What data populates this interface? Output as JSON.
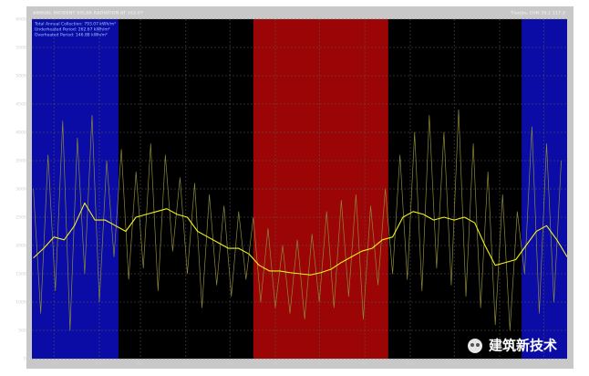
{
  "chart_data": {
    "type": "line",
    "title": "ANNUAL INCIDENT SOLAR RADIATION AT 162.07",
    "subtitle": "Tianjin, CHN 39.1 117.2",
    "annotations": [
      "Total Annual Collection: 793.07 kWh/m²",
      "Underheated Period: 262.67 kWh/m²",
      "Overheated Period: 146.88 kWh/m²"
    ],
    "xlim": [
      0,
      365
    ],
    "ylim": [
      0,
      6000
    ],
    "xticks": [
      {
        "value": 15,
        "label": "Jan"
      },
      {
        "value": 46,
        "label": "Feb"
      },
      {
        "value": 74,
        "label": "Mar"
      },
      {
        "value": 105,
        "label": "Apr"
      },
      {
        "value": 135,
        "label": "May"
      },
      {
        "value": 166,
        "label": "Jun"
      },
      {
        "value": 196,
        "label": "Jul"
      },
      {
        "value": 227,
        "label": "Aug"
      },
      {
        "value": 258,
        "label": "Sep"
      },
      {
        "value": 288,
        "label": "Oct"
      },
      {
        "value": 319,
        "label": "Nov"
      },
      {
        "value": 349,
        "label": "Dec"
      }
    ],
    "yticks": [
      {
        "value": 0,
        "label": "0.0"
      },
      {
        "value": 500,
        "label": "500.0"
      },
      {
        "value": 1000,
        "label": "1000.0"
      },
      {
        "value": 1500,
        "label": "1500.0"
      },
      {
        "value": 2000,
        "label": "2000.0"
      },
      {
        "value": 2500,
        "label": "2500.0"
      },
      {
        "value": 3000,
        "label": "3000.0"
      },
      {
        "value": 3500,
        "label": "3500.0"
      },
      {
        "value": 4000,
        "label": "4000.0"
      },
      {
        "value": 4500,
        "label": "4500.0"
      },
      {
        "value": 5000,
        "label": "5000.0"
      },
      {
        "value": 5500,
        "label": "5500.0"
      },
      {
        "value": 6000,
        "label": "6000.0"
      }
    ],
    "grid": true,
    "periods": [
      {
        "start": 0,
        "end": 59,
        "color": "#0b0ba6"
      },
      {
        "start": 151,
        "end": 243,
        "color": "#9c0505"
      },
      {
        "start": 334,
        "end": 365,
        "color": "#0b0ba6"
      }
    ],
    "series": [
      {
        "color": "#8c8a3c",
        "x": [
          1,
          6,
          11,
          16,
          21,
          26,
          31,
          36,
          41,
          46,
          51,
          56,
          61,
          66,
          71,
          76,
          81,
          86,
          91,
          96,
          101,
          106,
          111,
          116,
          121,
          126,
          131,
          136,
          141,
          146,
          151,
          156,
          161,
          166,
          171,
          176,
          181,
          186,
          191,
          196,
          201,
          206,
          211,
          216,
          221,
          226,
          231,
          236,
          241,
          246,
          251,
          256,
          261,
          266,
          271,
          276,
          281,
          286,
          291,
          296,
          301,
          306,
          311,
          316,
          321,
          326,
          331,
          336,
          341,
          346,
          351,
          356,
          361
        ],
        "values": [
          3000,
          800,
          3600,
          1200,
          4200,
          500,
          3900,
          1500,
          4300,
          1000,
          3500,
          1800,
          3700,
          1400,
          3300,
          1600,
          3800,
          1200,
          3600,
          1900,
          3200,
          1500,
          3100,
          900,
          2900,
          1300,
          2700,
          1100,
          2600,
          1400,
          2500,
          1000,
          2300,
          900,
          2000,
          800,
          2100,
          700,
          2200,
          1000,
          2600,
          900,
          2800,
          1100,
          2900,
          700,
          2700,
          1300,
          3000,
          1500,
          3600,
          1400,
          4000,
          1200,
          4300,
          1600,
          4000,
          1300,
          4400,
          1100,
          3800,
          900,
          3300,
          600,
          2900,
          500,
          2600,
          1500,
          4100,
          800,
          3800,
          1000,
          3500
        ]
      },
      {
        "color": "#f2f21e",
        "x": [
          1,
          8,
          15,
          22,
          29,
          36,
          43,
          50,
          57,
          64,
          71,
          78,
          85,
          92,
          99,
          106,
          113,
          120,
          127,
          134,
          141,
          148,
          155,
          162,
          169,
          176,
          183,
          190,
          197,
          204,
          211,
          218,
          225,
          232,
          239,
          246,
          253,
          260,
          267,
          274,
          281,
          288,
          295,
          302,
          309,
          316,
          323,
          330,
          337,
          344,
          351,
          358,
          365
        ],
        "values": [
          1780,
          1950,
          2150,
          2100,
          2350,
          2750,
          2450,
          2450,
          2350,
          2250,
          2500,
          2550,
          2600,
          2650,
          2550,
          2500,
          2250,
          2150,
          2050,
          1950,
          1950,
          1850,
          1650,
          1550,
          1550,
          1520,
          1500,
          1480,
          1520,
          1580,
          1700,
          1800,
          1900,
          1950,
          2100,
          2150,
          2500,
          2600,
          2550,
          2450,
          2500,
          2450,
          2500,
          2400,
          2000,
          1650,
          1700,
          1750,
          2000,
          2250,
          2350,
          2100,
          1800
        ]
      }
    ]
  },
  "watermark": "建筑新技术"
}
